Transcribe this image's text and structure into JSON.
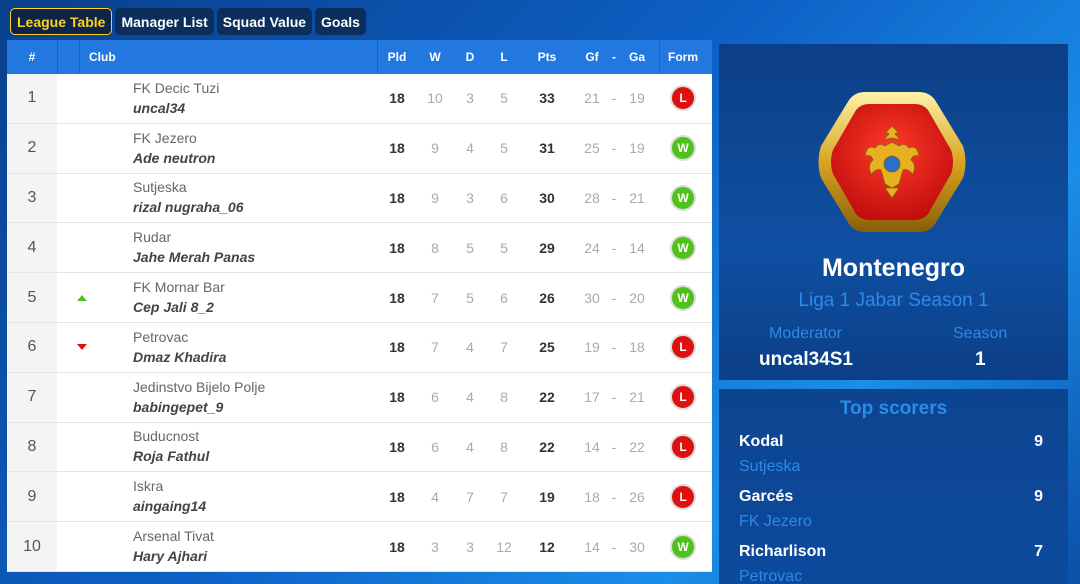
{
  "tabs": [
    "League Table",
    "Manager List",
    "Squad Value",
    "Goals"
  ],
  "columns": {
    "rank": "#",
    "club": "Club",
    "pld": "Pld",
    "w": "W",
    "d": "D",
    "l": "L",
    "pts": "Pts",
    "gf": "Gf",
    "sep": "-",
    "ga": "Ga",
    "form": "Form"
  },
  "rows": [
    {
      "rank": "1",
      "trend": "",
      "club": "FK Decic Tuzi",
      "manager": "uncal34",
      "pld": "18",
      "w": "10",
      "d": "3",
      "l": "5",
      "pts": "33",
      "gf": "21",
      "ga": "19",
      "form": "L"
    },
    {
      "rank": "2",
      "trend": "",
      "club": "FK Jezero",
      "manager": "Ade neutron",
      "pld": "18",
      "w": "9",
      "d": "4",
      "l": "5",
      "pts": "31",
      "gf": "25",
      "ga": "19",
      "form": "W"
    },
    {
      "rank": "3",
      "trend": "",
      "club": "Sutjeska",
      "manager": "rizal nugraha_06",
      "pld": "18",
      "w": "9",
      "d": "3",
      "l": "6",
      "pts": "30",
      "gf": "28",
      "ga": "21",
      "form": "W"
    },
    {
      "rank": "4",
      "trend": "",
      "club": "Rudar",
      "manager": "Jahe Merah Panas",
      "pld": "18",
      "w": "8",
      "d": "5",
      "l": "5",
      "pts": "29",
      "gf": "24",
      "ga": "14",
      "form": "W"
    },
    {
      "rank": "5",
      "trend": "up",
      "club": "FK Mornar Bar",
      "manager": "Cep Jali 8_2",
      "pld": "18",
      "w": "7",
      "d": "5",
      "l": "6",
      "pts": "26",
      "gf": "30",
      "ga": "20",
      "form": "W"
    },
    {
      "rank": "6",
      "trend": "down",
      "club": "Petrovac",
      "manager": "Dmaz Khadira",
      "pld": "18",
      "w": "7",
      "d": "4",
      "l": "7",
      "pts": "25",
      "gf": "19",
      "ga": "18",
      "form": "L"
    },
    {
      "rank": "7",
      "trend": "",
      "club": "Jedinstvo Bijelo Polje",
      "manager": "babingepet_9",
      "pld": "18",
      "w": "6",
      "d": "4",
      "l": "8",
      "pts": "22",
      "gf": "17",
      "ga": "21",
      "form": "L"
    },
    {
      "rank": "8",
      "trend": "",
      "club": "Buducnost",
      "manager": "Roja Fathul",
      "pld": "18",
      "w": "6",
      "d": "4",
      "l": "8",
      "pts": "22",
      "gf": "14",
      "ga": "22",
      "form": "L"
    },
    {
      "rank": "9",
      "trend": "",
      "club": "Iskra",
      "manager": "aingaing14",
      "pld": "18",
      "w": "4",
      "d": "7",
      "l": "7",
      "pts": "19",
      "gf": "18",
      "ga": "26",
      "form": "L"
    },
    {
      "rank": "10",
      "trend": "",
      "club": "Arsenal Tivat",
      "manager": "Hary Ajhari",
      "pld": "18",
      "w": "3",
      "d": "3",
      "l": "12",
      "pts": "12",
      "gf": "14",
      "ga": "30",
      "form": "W"
    }
  ],
  "league": {
    "country": "Montenegro",
    "name": "Liga 1 Jabar Season 1",
    "moderator_label": "Moderator",
    "moderator": "uncal34S1",
    "season_label": "Season",
    "season": "1"
  },
  "scorers": {
    "title": "Top scorers",
    "items": [
      {
        "name": "Kodal",
        "club": "Sutjeska",
        "goals": "9"
      },
      {
        "name": "Garcés",
        "club": "FK Jezero",
        "goals": "9"
      },
      {
        "name": "Richarlison",
        "club": "Petrovac",
        "goals": "7"
      }
    ]
  },
  "colors": {
    "accent": "#2378e0",
    "win": "#4fc11a",
    "loss": "#e01010",
    "tab_active": "#ffd21a"
  }
}
